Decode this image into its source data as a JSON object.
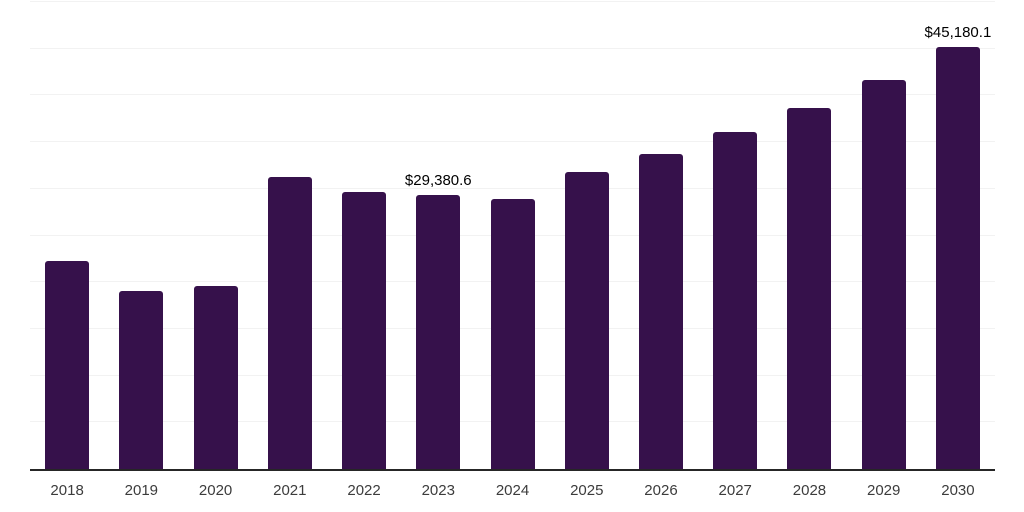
{
  "chart_data": {
    "type": "bar",
    "title": "",
    "xlabel": "",
    "ylabel": "",
    "categories": [
      "2018",
      "2019",
      "2020",
      "2021",
      "2022",
      "2023",
      "2024",
      "2025",
      "2026",
      "2027",
      "2028",
      "2029",
      "2030"
    ],
    "values": [
      22250,
      19050,
      19600,
      31250,
      29650,
      29380.6,
      28900,
      31800,
      33750,
      36100,
      38650,
      41600,
      45180.1
    ],
    "data_labels": [
      null,
      null,
      null,
      null,
      null,
      "$29,380.6",
      null,
      null,
      null,
      null,
      null,
      null,
      "$45,180.1"
    ],
    "ylim": [
      0,
      50000
    ],
    "gridline_step": 5000,
    "grid": true,
    "legend": false,
    "y_tick_labels_shown": false,
    "colors": {
      "bar": "#36114B",
      "gridline": "#F2F2F2",
      "axis_line": "#262626",
      "data_label": "#000000",
      "x_tick_label": "#3C3C3C",
      "background": "#FFFFFF"
    }
  }
}
